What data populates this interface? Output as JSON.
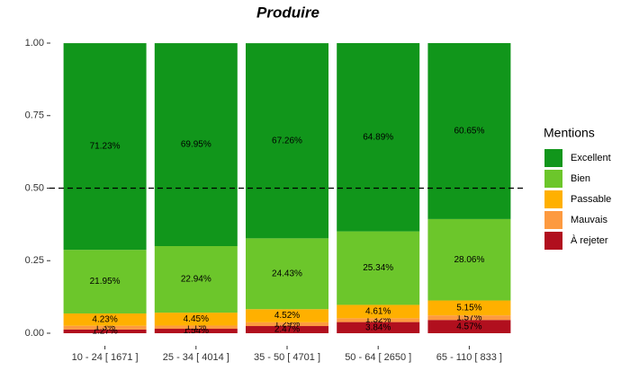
{
  "chart_data": {
    "type": "stacked-bar",
    "title": "Produire",
    "categories": [
      "10 - 24 [ 1671 ]",
      "25 - 34 [ 4014 ]",
      "35 - 50 [ 4701 ]",
      "50 - 64 [ 2650 ]",
      "65 - 110 [ 833 ]"
    ],
    "series": [
      {
        "name": "À rejeter",
        "color": "#b10f1e",
        "values": [
          0.0127,
          0.0154,
          0.0247,
          0.0384,
          0.0457
        ],
        "value_labels": [
          "1.27%",
          "1.54%",
          "2.47%",
          "3.84%",
          "4.57%"
        ]
      },
      {
        "name": "Mauvais",
        "color": "#fd9a40",
        "values": [
          0.013,
          0.011,
          0.0129,
          0.0132,
          0.0157
        ],
        "value_labels": [
          "1.3%",
          "1.1%",
          "1.29%",
          "1.32%",
          "1.57%"
        ]
      },
      {
        "name": "Passable",
        "color": "#ffb000",
        "values": [
          0.0423,
          0.0445,
          0.0452,
          0.0461,
          0.0515
        ],
        "value_labels": [
          "4.23%",
          "4.45%",
          "4.52%",
          "4.61%",
          "5.15%"
        ]
      },
      {
        "name": "Bien",
        "color": "#6cc62b",
        "values": [
          0.2195,
          0.2294,
          0.2443,
          0.2534,
          0.2806
        ],
        "value_labels": [
          "21.95%",
          "22.94%",
          "24.43%",
          "25.34%",
          "28.06%"
        ]
      },
      {
        "name": "Excellent",
        "color": "#11961b",
        "values": [
          0.7123,
          0.6995,
          0.6726,
          0.6489,
          0.6065
        ],
        "value_labels": [
          "71.23%",
          "69.95%",
          "67.26%",
          "64.89%",
          "60.65%"
        ]
      }
    ],
    "ylim": [
      0,
      1
    ],
    "yticks": [
      {
        "value": 0,
        "label": "0.00"
      },
      {
        "value": 0.25,
        "label": "0.25"
      },
      {
        "value": 0.5,
        "label": "0.50"
      },
      {
        "value": 0.75,
        "label": "0.75"
      },
      {
        "value": 1,
        "label": "1.00"
      }
    ],
    "hline": 0.5,
    "legend_title": "Mentions",
    "legend": "right"
  }
}
